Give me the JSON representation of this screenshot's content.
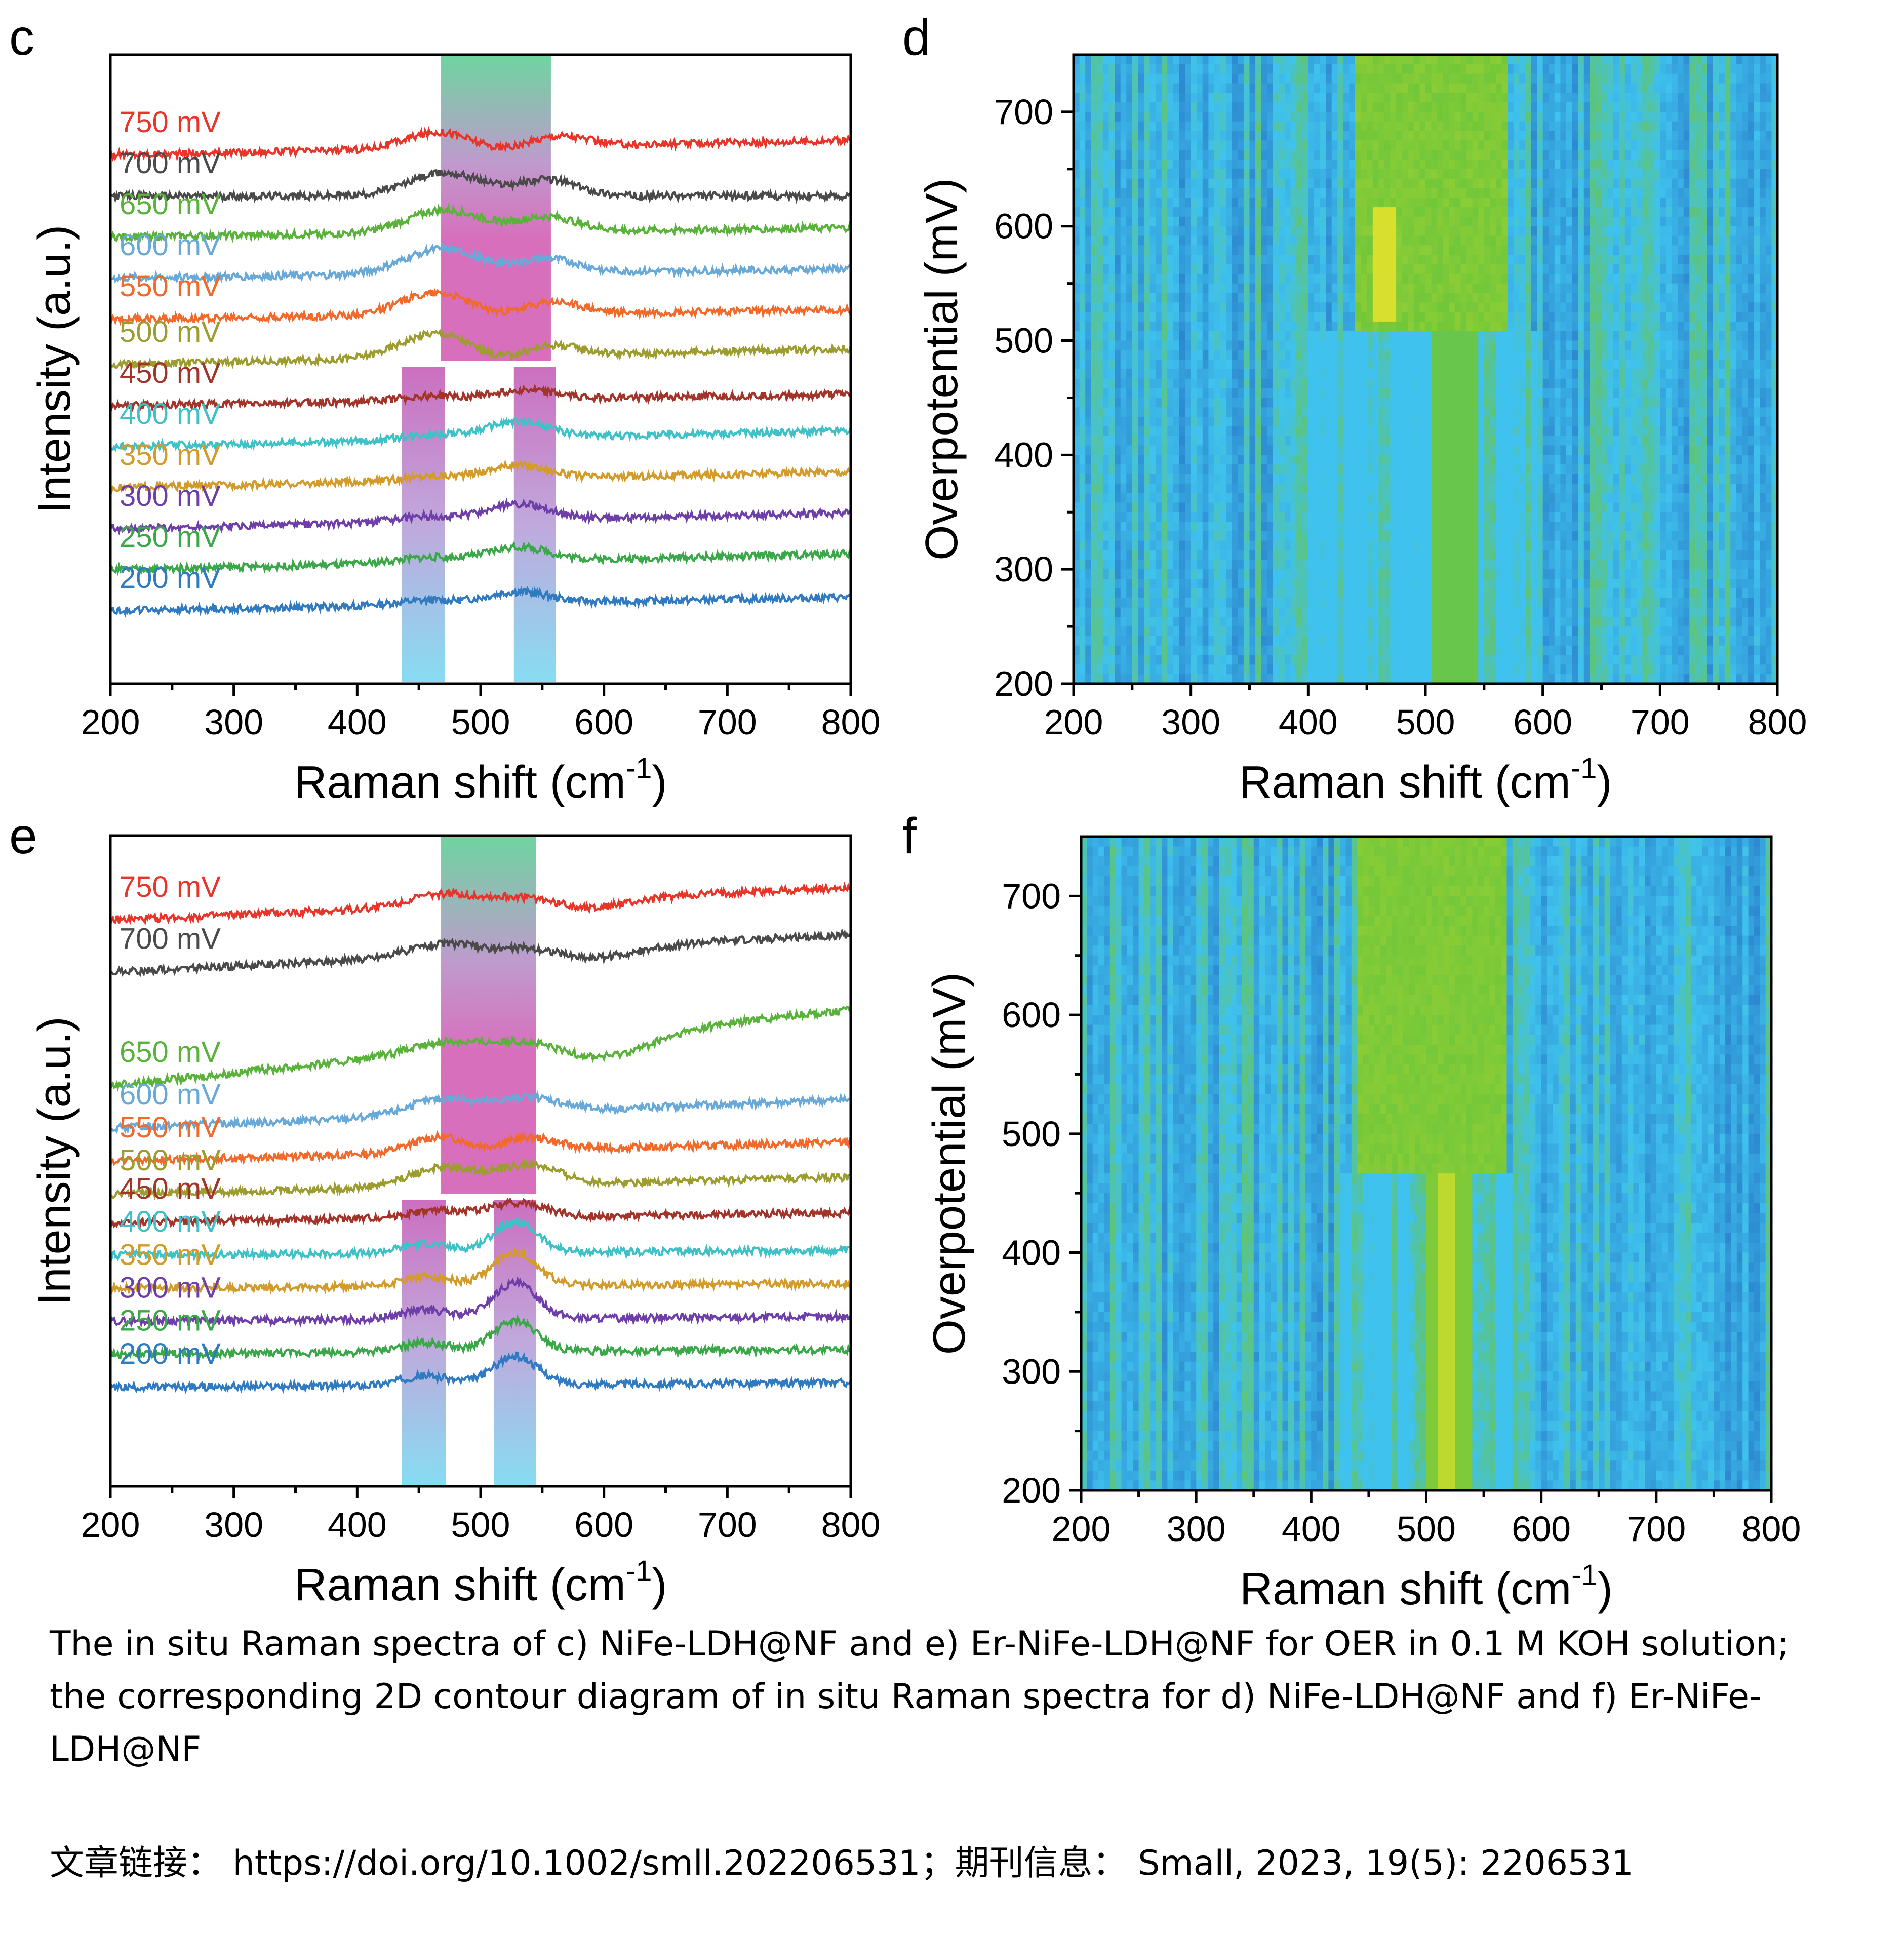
{
  "colors": {
    "voltage_colors": {
      "750 mV": "#e8352a",
      "700 mV": "#4a4a4a",
      "650 mV": "#59b33a",
      "600 mV": "#69a9d8",
      "550 mV": "#f26a2b",
      "500 mV": "#9c9c2f",
      "450 mV": "#a3342a",
      "400 mV": "#3ec2c8",
      "350 mV": "#d39b2a",
      "300 mV": "#6e3fa8",
      "250 mV": "#3aa848",
      "200 mV": "#2f7ac0"
    },
    "band_top": "#5fcf96",
    "band_mid": "#d35fb5",
    "band_low_top": "#c65fb8",
    "band_low_bottom": "#79d9f0",
    "contour_low": "#1f5cb8",
    "contour_mid": "#3fc2ee",
    "contour_high": "#6ec63a",
    "contour_peak": "#f2e62a"
  },
  "chart_data": [
    {
      "panel": "c",
      "type": "line",
      "xlabel": "Raman shift (cm",
      "xlabel_sup": "-1",
      "xlabel_end": ")",
      "ylabel": "Intensity (a.u.)",
      "xlim": [
        200,
        800
      ],
      "xticks": [
        "200",
        "300",
        "400",
        "500",
        "600",
        "700",
        "800"
      ],
      "yticks_shown": false,
      "series": [
        {
          "name": "750 mV",
          "offset": 11.6,
          "slope": 0.32,
          "peaks": [
            [
              470,
              0.45,
              28
            ],
            [
              560,
              0.32,
              24
            ]
          ],
          "dip": [
            515,
            0.18,
            40
          ]
        },
        {
          "name": "700 mV",
          "offset": 10.7,
          "slope": 0.0,
          "peaks": [
            [
              472,
              0.5,
              30
            ],
            [
              555,
              0.35,
              24
            ]
          ],
          "dip": [
            0,
            0,
            1
          ]
        },
        {
          "name": "650 mV",
          "offset": 9.8,
          "slope": 0.2,
          "peaks": [
            [
              470,
              0.5,
              30
            ],
            [
              555,
              0.32,
              24
            ]
          ],
          "dip": [
            0,
            0,
            1
          ]
        },
        {
          "name": "600 mV",
          "offset": 8.9,
          "slope": 0.2,
          "peaks": [
            [
              468,
              0.55,
              30
            ],
            [
              555,
              0.3,
              24
            ]
          ],
          "dip": [
            0,
            0,
            1
          ]
        },
        {
          "name": "550 mV",
          "offset": 8.0,
          "slope": 0.2,
          "peaks": [
            [
              468,
              0.6,
              30
            ],
            [
              555,
              0.35,
              24
            ]
          ],
          "dip": [
            510,
            0.2,
            40
          ]
        },
        {
          "name": "500 mV",
          "offset": 7.0,
          "slope": 0.35,
          "peaks": [
            [
              468,
              0.65,
              30
            ],
            [
              555,
              0.35,
              24
            ]
          ],
          "dip": [
            515,
            0.25,
            40
          ]
        },
        {
          "name": "450 mV",
          "offset": 6.1,
          "slope": 0.25,
          "peaks": [
            [
              460,
              0.1,
              25
            ],
            [
              535,
              0.2,
              25
            ]
          ],
          "dip": [
            0,
            0,
            1
          ]
        },
        {
          "name": "400 mV",
          "offset": 5.2,
          "slope": 0.35,
          "peaks": [
            [
              460,
              0.12,
              25
            ],
            [
              530,
              0.35,
              25
            ]
          ],
          "dip": [
            0,
            0,
            1
          ]
        },
        {
          "name": "350 mV",
          "offset": 4.3,
          "slope": 0.35,
          "peaks": [
            [
              460,
              0.1,
              25
            ],
            [
              530,
              0.3,
              25
            ]
          ],
          "dip": [
            0,
            0,
            1
          ]
        },
        {
          "name": "300 mV",
          "offset": 3.4,
          "slope": 0.35,
          "peaks": [
            [
              455,
              0.12,
              25
            ],
            [
              530,
              0.35,
              25
            ]
          ],
          "dip": [
            0,
            0,
            1
          ]
        },
        {
          "name": "250 mV",
          "offset": 2.5,
          "slope": 0.35,
          "peaks": [
            [
              455,
              0.12,
              25
            ],
            [
              530,
              0.3,
              25
            ]
          ],
          "dip": [
            0,
            0,
            1
          ]
        },
        {
          "name": "200 mV",
          "offset": 1.6,
          "slope": 0.3,
          "peaks": [
            [
              455,
              0.1,
              25
            ],
            [
              530,
              0.25,
              25
            ]
          ],
          "dip": [
            0,
            0,
            1
          ]
        }
      ],
      "bands": [
        {
          "from": 468,
          "to": 557,
          "level": "upper"
        },
        {
          "from": 436,
          "to": 471,
          "level": "lower"
        },
        {
          "from": 527,
          "to": 561,
          "level": "lower"
        }
      ]
    },
    {
      "panel": "d",
      "type": "heatmap",
      "xlabel": "Raman shift (cm",
      "xlabel_sup": "-1",
      "xlabel_end": ")",
      "ylabel": "Overpotential (mV)",
      "xlim": [
        200,
        800
      ],
      "ylim": [
        200,
        750
      ],
      "xticks": [
        "200",
        "300",
        "400",
        "500",
        "600",
        "700",
        "800"
      ],
      "yticks": [
        "200",
        "300",
        "400",
        "500",
        "600",
        "700"
      ]
    },
    {
      "panel": "e",
      "type": "line",
      "xlabel": "Raman shift (cm",
      "xlabel_sup": "-1",
      "xlabel_end": ")",
      "ylabel": "Intensity (a.u.)",
      "xlim": [
        200,
        800
      ],
      "xticks": [
        "200",
        "300",
        "400",
        "500",
        "600",
        "700",
        "800"
      ],
      "yticks_shown": false,
      "series": [
        {
          "name": "750 mV",
          "offset": 12.0,
          "slope": 0.7,
          "peaks": [
            [
              470,
              0.25,
              28
            ],
            [
              540,
              0.2,
              24
            ]
          ],
          "dip": [
            580,
            0.2,
            40
          ]
        },
        {
          "name": "700 mV",
          "offset": 10.9,
          "slope": 0.8,
          "peaks": [
            [
              470,
              0.25,
              28
            ],
            [
              545,
              0.2,
              24
            ]
          ],
          "dip": [
            580,
            0.25,
            40
          ]
        },
        {
          "name": "650 mV",
          "offset": 8.5,
          "slope": 1.6,
          "peaks": [
            [
              470,
              0.2,
              28
            ],
            [
              540,
              0.15,
              24
            ]
          ],
          "dip": [
            600,
            0.45,
            40
          ]
        },
        {
          "name": "600 mV",
          "offset": 7.6,
          "slope": 0.6,
          "peaks": [
            [
              470,
              0.35,
              28
            ],
            [
              540,
              0.3,
              24
            ]
          ],
          "dip": [
            0,
            0,
            1
          ]
        },
        {
          "name": "550 mV",
          "offset": 6.9,
          "slope": 0.4,
          "peaks": [
            [
              470,
              0.35,
              25
            ],
            [
              535,
              0.3,
              24
            ]
          ],
          "dip": [
            505,
            0.15,
            20
          ]
        },
        {
          "name": "500 mV",
          "offset": 6.2,
          "slope": 0.35,
          "peaks": [
            [
              470,
              0.4,
              28
            ],
            [
              540,
              0.4,
              24
            ]
          ],
          "dip": [
            0,
            0,
            1
          ]
        },
        {
          "name": "450 mV",
          "offset": 5.6,
          "slope": 0.2,
          "peaks": [
            [
              465,
              0.15,
              25
            ],
            [
              530,
              0.3,
              22
            ]
          ],
          "dip": [
            0,
            0,
            1
          ]
        },
        {
          "name": "400 mV",
          "offset": 4.9,
          "slope": 0.1,
          "peaks": [
            [
              455,
              0.2,
              20
            ],
            [
              528,
              0.65,
              18
            ]
          ],
          "dip": [
            0,
            0,
            1
          ]
        },
        {
          "name": "350 mV",
          "offset": 4.2,
          "slope": 0.1,
          "peaks": [
            [
              455,
              0.2,
              20
            ],
            [
              528,
              0.7,
              18
            ]
          ],
          "dip": [
            0,
            0,
            1
          ]
        },
        {
          "name": "300 mV",
          "offset": 3.5,
          "slope": 0.1,
          "peaks": [
            [
              455,
              0.2,
              20
            ],
            [
              528,
              0.75,
              18
            ]
          ],
          "dip": [
            0,
            0,
            1
          ]
        },
        {
          "name": "250 mV",
          "offset": 2.8,
          "slope": 0.1,
          "peaks": [
            [
              455,
              0.2,
              20
            ],
            [
              528,
              0.65,
              18
            ]
          ],
          "dip": [
            0,
            0,
            1
          ]
        },
        {
          "name": "200 mV",
          "offset": 2.1,
          "slope": 0.1,
          "peaks": [
            [
              455,
              0.2,
              20
            ],
            [
              528,
              0.6,
              18
            ]
          ],
          "dip": [
            0,
            0,
            1
          ]
        }
      ],
      "bands": [
        {
          "from": 468,
          "to": 545,
          "level": "upper"
        },
        {
          "from": 436,
          "to": 472,
          "level": "lower"
        },
        {
          "from": 511,
          "to": 545,
          "level": "lower"
        }
      ]
    },
    {
      "panel": "f",
      "type": "heatmap",
      "xlabel": "Raman shift (cm",
      "xlabel_sup": "-1",
      "xlabel_end": ")",
      "ylabel": "Overpotential (mV)",
      "xlim": [
        200,
        800
      ],
      "ylim": [
        200,
        750
      ],
      "xticks": [
        "200",
        "300",
        "400",
        "500",
        "600",
        "700",
        "800"
      ],
      "yticks": [
        "200",
        "300",
        "400",
        "500",
        "600",
        "700"
      ]
    }
  ],
  "caption": {
    "line1": "The in situ Raman spectra of c) NiFe-LDH@NF and e) Er-NiFe-LDH@NF for OER in 0.1 M KOH solution;",
    "line2": "the corresponding 2D contour diagram of in situ Raman spectra for d) NiFe-LDH@NF and f) Er-NiFe-",
    "line3": "LDH@NF"
  },
  "footer": {
    "text": "文章链接： https://doi.org/10.1002/smll.202206531；期刊信息： Small, 2023, 19(5): 2206531"
  }
}
